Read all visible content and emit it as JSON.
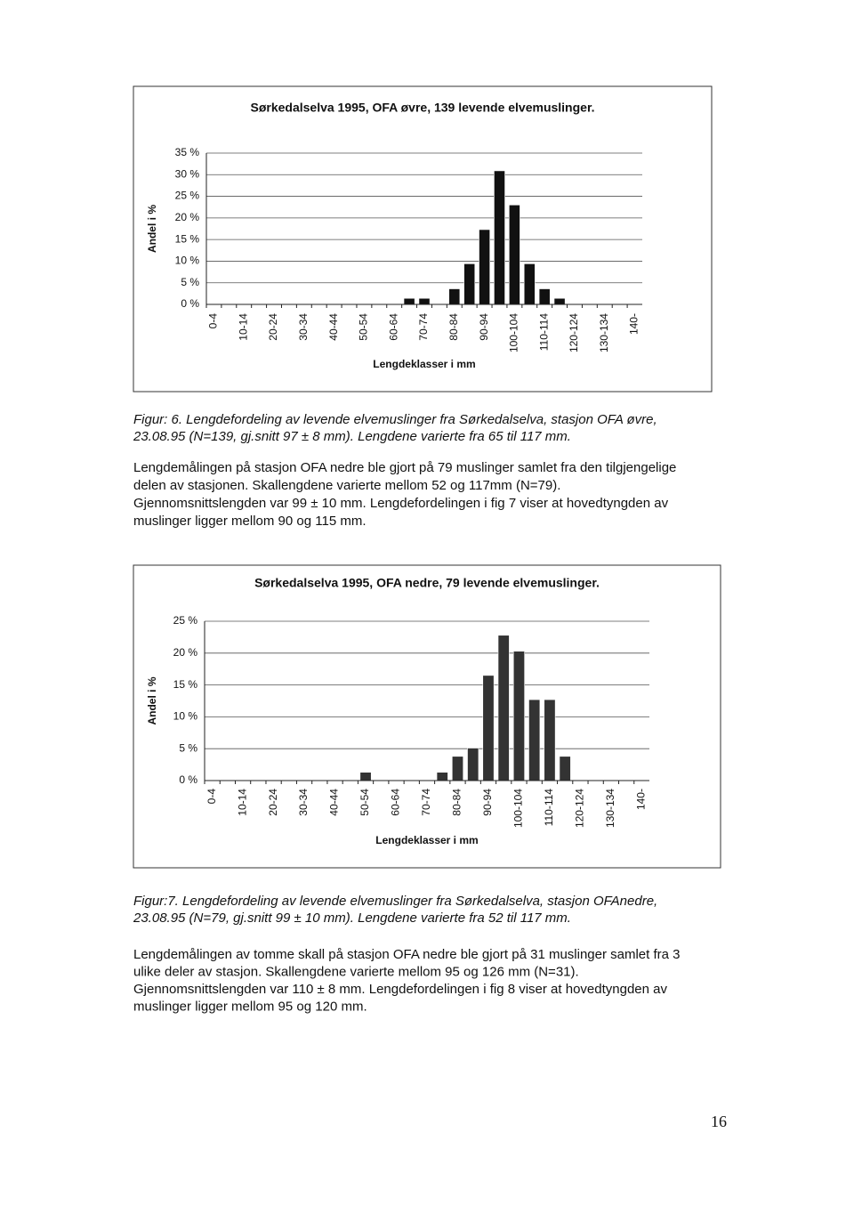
{
  "chart_data": [
    {
      "type": "bar",
      "title": "Sørkedalselva 1995, OFA øvre, 139 levende elvemuslinger.",
      "y_label": "Andel i %",
      "x_label": "Lengdeklasser i mm",
      "categories": [
        "0-4",
        null,
        "10-14",
        null,
        "20-24",
        null,
        "30-34",
        null,
        "40-44",
        null,
        "50-54",
        null,
        "60-64",
        null,
        "70-74",
        null,
        "80-84",
        null,
        "90-94",
        null,
        "100-104",
        null,
        "110-114",
        null,
        "120-124",
        null,
        "130-134",
        null,
        "140-"
      ],
      "values": [
        0,
        0,
        0,
        0,
        0,
        0,
        0,
        0,
        0,
        0,
        0,
        0,
        0,
        1.4,
        1.4,
        0,
        3.6,
        9.4,
        17.3,
        30.9,
        23.0,
        9.4,
        3.6,
        1.4,
        0,
        0,
        0,
        0,
        0
      ],
      "color": "#111111",
      "ylim": [
        0,
        35
      ],
      "yticks": [
        {
          "value": 0,
          "label": "0 %"
        },
        {
          "value": 5,
          "label": "5 %"
        },
        {
          "value": 10,
          "label": "10 %"
        },
        {
          "value": 15,
          "label": "15 %"
        },
        {
          "value": 20,
          "label": "20 %"
        },
        {
          "value": 25,
          "label": "25 %"
        },
        {
          "value": 30,
          "label": "30 %"
        },
        {
          "value": 35,
          "label": "35 %"
        }
      ],
      "grid": true
    },
    {
      "type": "bar",
      "title": "Sørkedalselva 1995, OFA nedre, 79 levende elvemuslinger.",
      "y_label": "Andel i %",
      "x_label": "Lengdeklasser i mm",
      "categories": [
        "0-4",
        null,
        "10-14",
        null,
        "20-24",
        null,
        "30-34",
        null,
        "40-44",
        null,
        "50-54",
        null,
        "60-64",
        null,
        "70-74",
        null,
        "80-84",
        null,
        "90-94",
        null,
        "100-104",
        null,
        "110-114",
        null,
        "120-124",
        null,
        "130-134",
        null,
        "140-"
      ],
      "values": [
        0,
        0,
        0,
        0,
        0,
        0,
        0,
        0,
        0,
        0,
        1.3,
        0,
        0,
        0,
        0,
        1.3,
        3.8,
        5.1,
        16.5,
        22.8,
        20.3,
        12.7,
        12.7,
        3.8,
        0,
        0,
        0,
        0,
        0
      ],
      "color": "#333333",
      "ylim": [
        0,
        25
      ],
      "yticks": [
        {
          "value": 0,
          "label": "0 %"
        },
        {
          "value": 5,
          "label": "5 %"
        },
        {
          "value": 10,
          "label": "10 %"
        },
        {
          "value": 15,
          "label": "15 %"
        },
        {
          "value": 20,
          "label": "20 %"
        },
        {
          "value": 25,
          "label": "25 %"
        }
      ],
      "grid": true
    }
  ],
  "document": {
    "figure_6_caption": [
      "Figur: 6.  Lengdefordeling av levende elvemuslinger fra Sørkedalselva, stasjon OFA øvre,",
      "23.08.95 (N=139, gj.snitt 97 ± 8 mm). Lengdene varierte fra 65 til 117 mm."
    ],
    "paragraph_1": [
      "Lengdemålingen på stasjon OFA nedre ble gjort på 79 muslinger samlet fra den tilgjengelige",
      "delen av stasjonen. Skallengdene varierte mellom 52 og 117mm (N=79).",
      "Gjennomsnittslengden var 99 ± 10 mm. Lengdefordelingen i fig 7 viser at hovedtyngden av",
      "muslinger ligger mellom 90 og 115 mm."
    ],
    "figure_7_caption": [
      "Figur:7.  Lengdefordeling av levende elvemuslinger fra Sørkedalselva, stasjon OFAnedre,",
      "23.08.95 (N=79, gj.snitt 99 ± 10 mm). Lengdene varierte fra 52 til 117 mm."
    ],
    "paragraph_2": [
      "Lengdemålingen av tomme skall på stasjon OFA nedre ble gjort på 31 muslinger samlet fra 3",
      "ulike deler av stasjon. Skallengdene varierte mellom 95 og 126 mm (N=31).",
      "Gjennomsnittslengden var 110 ± 8 mm. Lengdefordelingen i fig 8 viser at hovedtyngden av",
      "muslinger ligger mellom 95 og 120 mm."
    ],
    "page_number": "16"
  }
}
